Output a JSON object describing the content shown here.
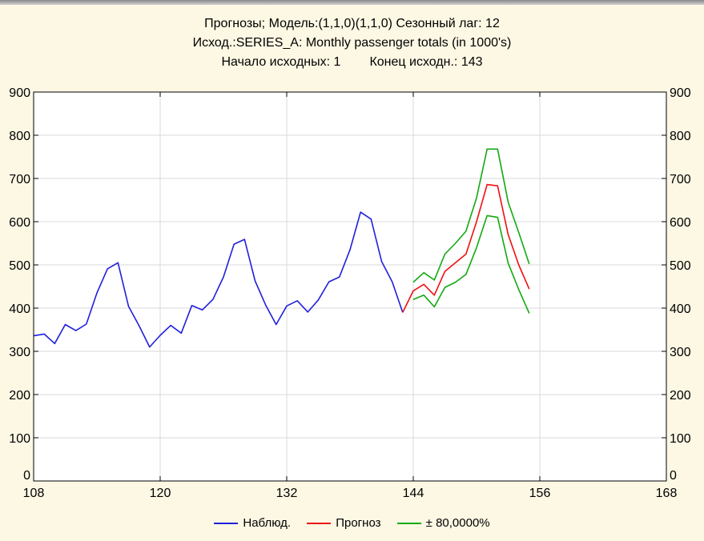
{
  "chart_data": {
    "type": "line",
    "title": "Прогнозы; Модель:(1,1,0)(1,1,0) Сезонный лаг: 12",
    "subtitle": "Исход.:SERIES_A: Monthly passenger totals (in 1000's)",
    "range_start_label": "Начало исходных: 1",
    "range_end_label": "Конец исходн.: 143",
    "xlim": [
      108,
      168
    ],
    "ylim": [
      0,
      900
    ],
    "x_ticks": [
      "108",
      "120",
      "132",
      "144",
      "156",
      "168"
    ],
    "x_tick_values": [
      108,
      120,
      132,
      144,
      156,
      168
    ],
    "y_ticks": [
      "0",
      "100",
      "200",
      "300",
      "400",
      "500",
      "600",
      "700",
      "800",
      "900"
    ],
    "y_tick_values": [
      0,
      100,
      200,
      300,
      400,
      500,
      600,
      700,
      800,
      900
    ],
    "grid": true,
    "legend_position": "bottom",
    "series": [
      {
        "name": "Наблюд.",
        "color": "#2020dd",
        "x": [
          108,
          109,
          110,
          111,
          112,
          113,
          114,
          115,
          116,
          117,
          118,
          119,
          120,
          121,
          122,
          123,
          124,
          125,
          126,
          127,
          128,
          129,
          130,
          131,
          132,
          133,
          134,
          135,
          136,
          137,
          138,
          139,
          140,
          141,
          142,
          143
        ],
        "y": [
          336,
          340,
          318,
          362,
          348,
          363,
          435,
          491,
          505,
          404,
          359,
          310,
          337,
          360,
          342,
          406,
          396,
          420,
          472,
          548,
          559,
          463,
          407,
          362,
          405,
          417,
          391,
          419,
          461,
          472,
          535,
          622,
          606,
          508,
          461,
          390
        ]
      },
      {
        "name": "Прогноз",
        "color": "#ee1111",
        "x": [
          143,
          144,
          145,
          146,
          147,
          148,
          149,
          150,
          151,
          152,
          153,
          154,
          155
        ],
        "y": [
          390,
          440,
          455,
          430,
          485,
          505,
          525,
          600,
          686,
          683,
          570,
          500,
          444
        ]
      },
      {
        "name": "± 80,0000%",
        "color": "#11aa11",
        "x": [
          144,
          145,
          146,
          147,
          148,
          149,
          150,
          151,
          152,
          153,
          154,
          155
        ],
        "y": [
          460,
          482,
          465,
          525,
          550,
          578,
          655,
          768,
          768,
          645,
          575,
          502
        ]
      },
      {
        "name": "",
        "color": "#11aa11",
        "x": [
          144,
          145,
          146,
          147,
          148,
          149,
          150,
          151,
          152,
          153,
          154,
          155
        ],
        "y": [
          420,
          430,
          403,
          448,
          460,
          478,
          540,
          614,
          610,
          504,
          443,
          388
        ]
      }
    ]
  }
}
